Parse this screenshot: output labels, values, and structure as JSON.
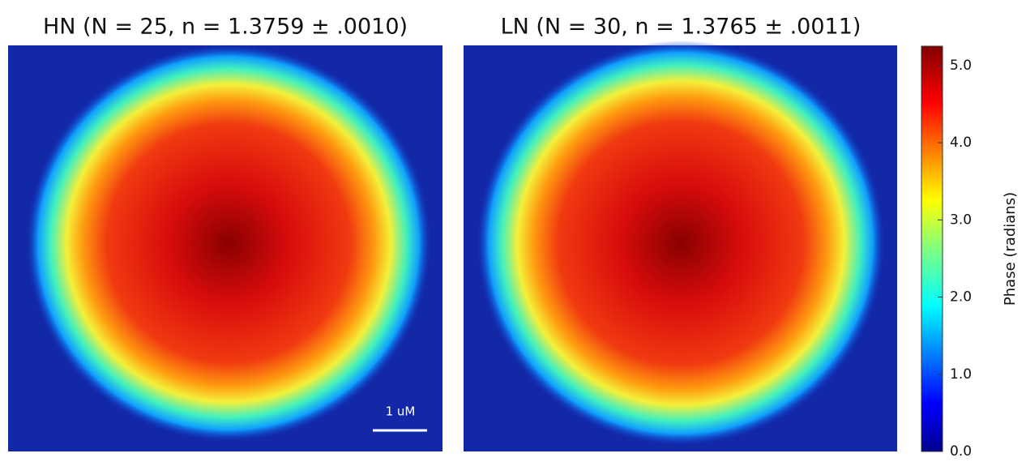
{
  "panels": [
    {
      "title": "HN (N = 25, n = 1.3759 ± .0010)",
      "scale_bar": "1 uM"
    },
    {
      "title": "LN (N = 30, n = 1.3765 ± .0011)"
    }
  ],
  "colorbar": {
    "label": "Phase (radians)",
    "lim": [
      0,
      5.25
    ],
    "ticks": [
      {
        "value": 0,
        "label": "0.0"
      },
      {
        "value": 1,
        "label": "1.0"
      },
      {
        "value": 2,
        "label": "2.0"
      },
      {
        "value": 3,
        "label": "3.0"
      },
      {
        "value": 4,
        "label": "4.0"
      },
      {
        "value": 5,
        "label": "5.0"
      }
    ]
  }
}
